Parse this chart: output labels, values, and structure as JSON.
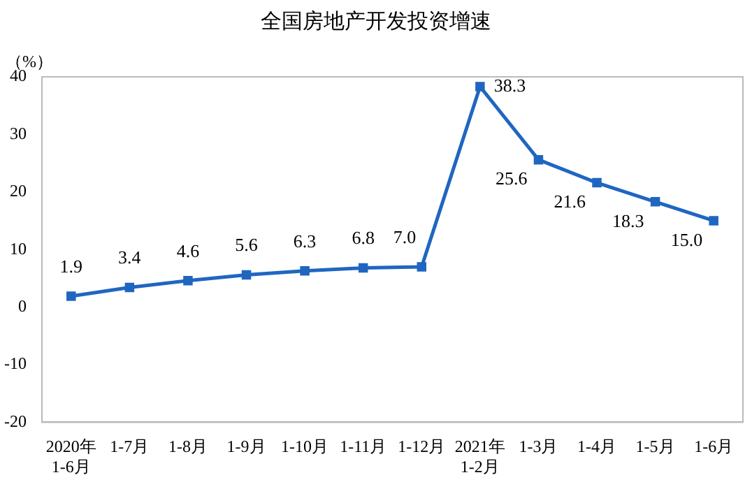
{
  "chart_data": {
    "type": "line",
    "title": "全国房地产开发投资增速",
    "ylabel": "（%）",
    "categories": [
      "2020年\n1-6月",
      "1-7月",
      "1-8月",
      "1-9月",
      "1-10月",
      "1-11月",
      "1-12月",
      "2021年\n1-2月",
      "1-3月",
      "1-4月",
      "1-5月",
      "1-6月"
    ],
    "series": [
      {
        "color": "#1f66c1",
        "values": [
          1.9,
          3.4,
          4.6,
          5.6,
          6.3,
          6.8,
          7.0,
          38.3,
          25.6,
          21.6,
          18.3,
          15.0
        ],
        "value_labels": [
          "1.9",
          "3.4",
          "4.6",
          "5.6",
          "6.3",
          "6.8",
          "7.0",
          "38.3",
          "25.6",
          "21.6",
          "18.3",
          "15.0"
        ]
      }
    ],
    "ylim": [
      -20,
      40
    ],
    "yticks": [
      -20,
      -10,
      0,
      10,
      20,
      30,
      40
    ],
    "grid": false,
    "legend": false,
    "marker": "square",
    "line_style": "solid"
  }
}
